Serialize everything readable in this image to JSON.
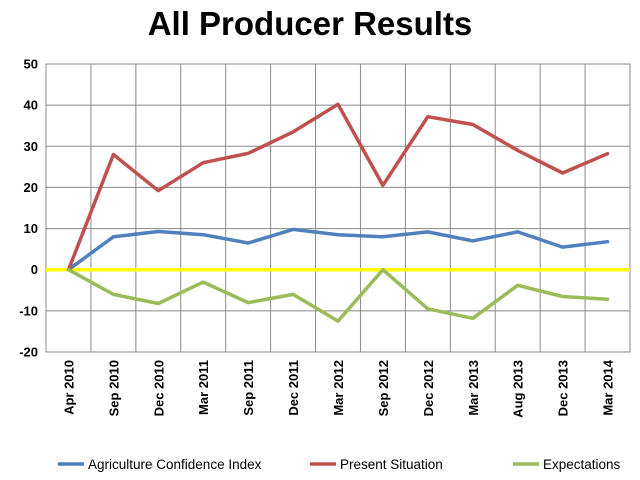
{
  "chart_data": {
    "type": "line",
    "title": "All Producer Results",
    "xlabel": "",
    "ylabel": "",
    "categories": [
      "Apr 2010",
      "Sep 2010",
      "Dec 2010",
      "Mar 2011",
      "Sep 2011",
      "Dec 2011",
      "Mar 2012",
      "Sep 2012",
      "Dec 2012",
      "Mar 2013",
      "Aug 2013",
      "Dec 2013",
      "Mar 2014"
    ],
    "ylim": [
      -20,
      50
    ],
    "yticks": [
      50,
      40,
      30,
      20,
      10,
      0,
      -10,
      -20
    ],
    "grid": true,
    "legend_position": "bottom",
    "zero_line_color": "#ffff00",
    "series": [
      {
        "name": "Agriculture Confidence Index",
        "color": "#4f81bd",
        "values": [
          0,
          8,
          9.3,
          8.5,
          6.5,
          9.8,
          8.5,
          8,
          9.2,
          7,
          9.2,
          5.5,
          6.8
        ]
      },
      {
        "name": "Present Situation",
        "color": "#c0504d",
        "values": [
          0,
          28,
          19.2,
          26,
          28.3,
          33.5,
          40.2,
          20.5,
          37.2,
          35.3,
          29,
          23.5,
          28.2
        ]
      },
      {
        "name": "Expectations",
        "color": "#9bbb59",
        "values": [
          0,
          -6,
          -8.2,
          -3,
          -8,
          -6,
          -12.5,
          0,
          -9.5,
          -11.8,
          -3.8,
          -6.5,
          -7.2
        ]
      }
    ]
  }
}
